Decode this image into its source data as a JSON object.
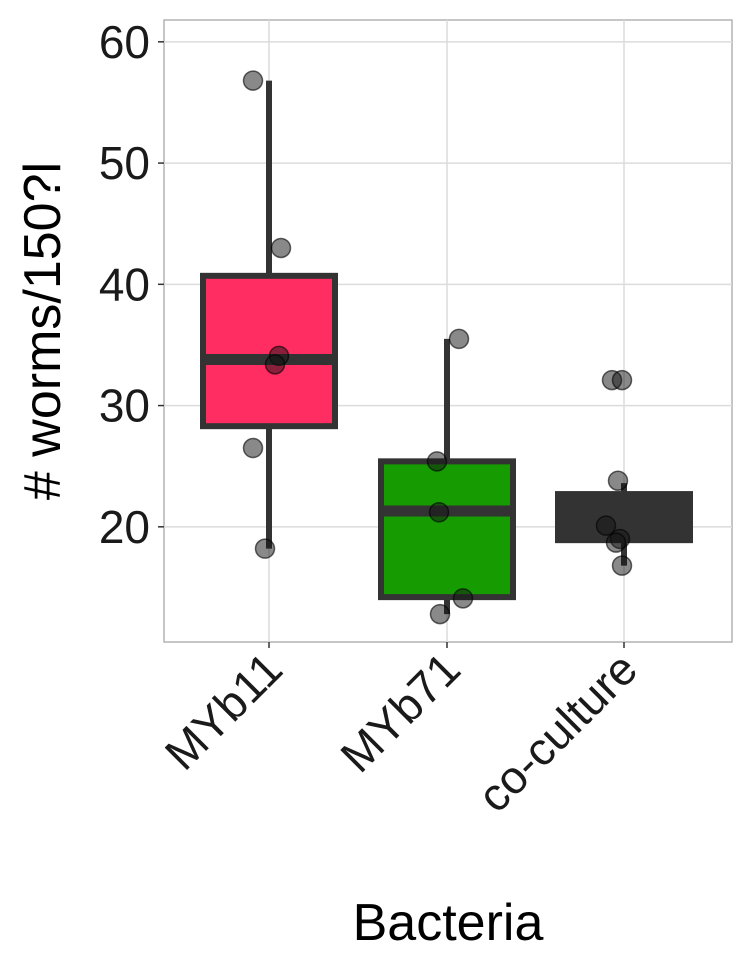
{
  "chart_data": {
    "type": "box",
    "title": "",
    "xlabel": "Bacteria",
    "ylabel": "# worms/150?l",
    "categories": [
      "MYb11",
      "MYb71",
      "co-culture"
    ],
    "ylim": [
      10.5,
      61.8
    ],
    "yticks": [
      20,
      30,
      40,
      50,
      60
    ],
    "grid": true,
    "legend": "none",
    "colors": [
      "#ff2d62",
      "#169b00",
      "#333333"
    ],
    "boxes": [
      {
        "name": "MYb11",
        "q1": 28.3,
        "median": 33.8,
        "q3": 40.7,
        "whisker_low": 18.2,
        "whisker_high": 56.8
      },
      {
        "name": "MYb71",
        "q1": 14.2,
        "median": 21.3,
        "q3": 25.4,
        "whisker_low": 12.8,
        "whisker_high": 35.5
      },
      {
        "name": "co-culture",
        "q1": 18.9,
        "median": 20.5,
        "q3": 22.7,
        "whisker_low": 16.8,
        "whisker_high": 23.6
      }
    ],
    "points": [
      [
        56.8,
        43.0,
        34.1,
        33.4,
        26.5,
        18.2
      ],
      [
        35.5,
        25.4,
        21.2,
        14.1,
        12.8
      ],
      [
        32.1,
        32.1,
        23.8,
        20.1,
        19.0,
        18.7,
        16.8
      ]
    ]
  }
}
